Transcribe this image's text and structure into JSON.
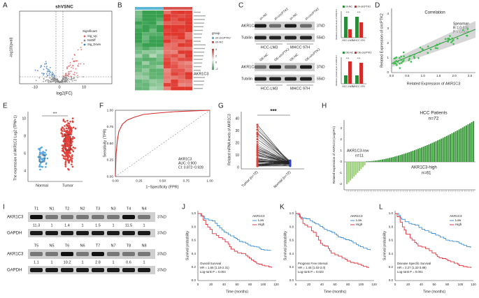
{
  "panels": {
    "A": {
      "letter": "A",
      "title": "shVSNC",
      "xlabel": "log2(FC)",
      "ylabel": "-log10(pval)",
      "xticks": [
        "-10",
        "0",
        "10"
      ],
      "legend_title": "Significant",
      "legend": [
        "Sig_Up",
        "NoDiff",
        "Sig_Down"
      ]
    },
    "B": {
      "letter": "B",
      "highlight_gene": "AKR1C3",
      "legend_title": "group",
      "legend": [
        "sh-circPTK2",
        "sh-NC"
      ],
      "scale": [
        "4",
        "2",
        "0",
        "-2"
      ]
    },
    "C": {
      "letter": "C",
      "top": {
        "lanes": [
          "sh-NC",
          "sh-circPTK2",
          "sh-NC",
          "sh-circPTK2"
        ],
        "rows": [
          "AKR1C3",
          "Tubilin"
        ],
        "sizes": [
          "37kD",
          "55kD"
        ],
        "cells": [
          "HCC-LM3",
          "MHCC 97H"
        ]
      },
      "bottom": {
        "lanes": [
          "OE-NC",
          "OE-circPTK2",
          "OE-NC",
          "OE-circPTK2"
        ],
        "rows": [
          "AKR1C3",
          "Tubilin"
        ],
        "sizes": [
          "37kD",
          "55kD"
        ],
        "cells": [
          "HCC-LM3",
          "MHCC 97H"
        ]
      },
      "bar_top": {
        "legend": [
          "sh-NC",
          "sh-circPTK2"
        ],
        "ylabel": "Relative protein level of AKR1C3",
        "cells": [
          "HCC-LM3",
          "MHCC 97H"
        ],
        "sig": "***"
      },
      "bar_bottom": {
        "legend": [
          "OE-NC",
          "OE-circPTK2"
        ],
        "ylabel": "Relative protein level of AKR1C3",
        "cells": [
          "HCC-LM3",
          "MHCC 97H"
        ],
        "sig": "***"
      }
    },
    "D": {
      "letter": "D",
      "title": "Correlation",
      "stats": [
        "Spearman",
        "R = 0.628",
        "P < 0.001"
      ],
      "xlabel": "Related Expression of AKR1C3",
      "ylabel": "Related Expression of circPTK2",
      "xticks": [
        "0.0",
        "0.5",
        "1.0",
        "1.5",
        "2.0",
        "2.5"
      ],
      "yticks": [
        "0",
        "1",
        "2",
        "3",
        "4"
      ]
    },
    "E": {
      "letter": "E",
      "ylabel": "The expression of AKR1C3 Log2 (TPM+1)",
      "categories": [
        "Normal",
        "Tumor"
      ],
      "sig": "***",
      "yticks": [
        "4",
        "6",
        "8",
        "10"
      ]
    },
    "F": {
      "letter": "F",
      "ylabel": "Sensitivity (TPR)",
      "xlabel": "1−Specificity (FPR)",
      "legend": [
        "AKR1C3",
        "AUC: 0.900",
        "CI: 0.872−0.928"
      ],
      "ticks": [
        "0.00",
        "0.25",
        "0.50",
        "0.75",
        "1.00"
      ]
    },
    "G": {
      "letter": "G",
      "ylabel": "Related mRNA levels of AKR1C3",
      "categories": [
        "Tumor (n=72)",
        "Normal (n=72)"
      ],
      "sig": "***",
      "yticks": [
        "0",
        "10",
        "20",
        "30",
        "40"
      ]
    },
    "H": {
      "letter": "H",
      "title": "HCC Patients",
      "n_total": "n=72",
      "low": "AKR1C3-low",
      "n_low": "n=11",
      "high": "AKR1C3-high",
      "n_high": "n=61",
      "ylabel": "Related expression of AKR1C3 (Log2FC)",
      "yticks": [
        "3",
        "2",
        "1",
        "0",
        "-1",
        "-2"
      ]
    },
    "I": {
      "letter": "I",
      "rows": [
        "AKR1C3",
        "GAPDH"
      ],
      "size": "37kD",
      "set1": {
        "lanes": [
          "T1",
          "N1",
          "T2",
          "N2",
          "T3",
          "N3",
          "T4",
          "N4"
        ],
        "values": [
          "11.3",
          "1",
          "1.4",
          "1",
          "1.5",
          "1",
          "11.5",
          "1"
        ]
      },
      "set2": {
        "lanes": [
          "T5",
          "N5",
          "T6",
          "N6",
          "T7",
          "N7",
          "T8",
          "N8"
        ],
        "values": [
          "1.1",
          "1",
          "10.2",
          "1",
          "2.8",
          "1",
          "0.6",
          "1"
        ]
      }
    },
    "J": {
      "letter": "J",
      "ylabel": "Survival probability",
      "xlabel": "Time (months)",
      "legend_title": "AKR1C3",
      "legend": [
        "Low",
        "High"
      ],
      "notes": [
        "Overall Survival",
        "HR = 1.66 (1.18-2.31)",
        "Log-rank P = 0.003"
      ],
      "xticks": [
        "0",
        "20",
        "40",
        "60",
        "80",
        "100",
        "120"
      ],
      "yticks": [
        "0.0",
        "0.2",
        "0.4",
        "0.6",
        "0.8",
        "1.0"
      ]
    },
    "K": {
      "letter": "K",
      "ylabel": "Survival probability",
      "xlabel": "Time (months)",
      "legend_title": "AKR1C3",
      "legend": [
        "Low",
        "High"
      ],
      "notes": [
        "Progress Free Interval",
        "HR = 1.45 (1.02-2.0)",
        "Log-rank P = 0.023"
      ],
      "xticks": [
        "0",
        "20",
        "40",
        "60",
        "80",
        "100",
        "120"
      ],
      "yticks": [
        "0.0",
        "0.2",
        "0.4",
        "0.6",
        "0.8",
        "1.0"
      ]
    },
    "L": {
      "letter": "L",
      "ylabel": "Survival probability",
      "xlabel": "Time (months)",
      "legend_title": "AKR1C3",
      "legend": [
        "Low",
        "High"
      ],
      "notes": [
        "Disease Specific Survival",
        "HR = 2.27 (1.32-3.89)",
        "Log-rank P = 0.001"
      ],
      "xticks": [
        "0",
        "20",
        "40",
        "60",
        "80",
        "100",
        "120"
      ],
      "yticks": [
        "0.0",
        "0.2",
        "0.4",
        "0.6",
        "0.8",
        "1.0"
      ]
    }
  }
}
